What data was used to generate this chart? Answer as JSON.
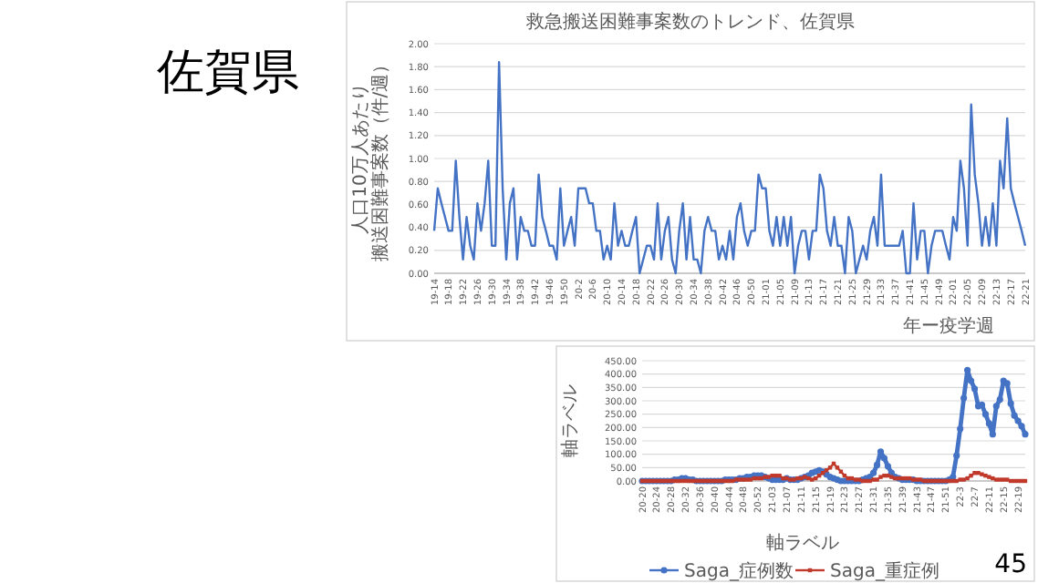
{
  "chart_data": [
    {
      "type": "other",
      "title": "佐賀県",
      "annotations": [
        "45"
      ]
    },
    {
      "type": "line",
      "title": "救急搬送困難事案数のトレンド、佐賀県",
      "xlabel": "年ー疫学週",
      "ylabel": "人口10万人あたり搬送困難事案数（件/週）",
      "grid": "y",
      "marker": "none",
      "line_style": "solid",
      "categories": [
        "19-14",
        null,
        null,
        null,
        "19-18",
        null,
        null,
        null,
        "19-22",
        null,
        null,
        null,
        "19-26",
        null,
        null,
        null,
        "19-30",
        null,
        null,
        null,
        "19-34",
        null,
        null,
        null,
        "19-38",
        null,
        null,
        null,
        "19-42",
        null,
        null,
        null,
        "19-46",
        null,
        null,
        null,
        "19-50",
        null,
        null,
        null,
        "20-2",
        null,
        null,
        null,
        "20-6",
        null,
        null,
        null,
        "20-10",
        null,
        null,
        null,
        "20-14",
        null,
        null,
        null,
        "20-18",
        null,
        null,
        null,
        "20-22",
        null,
        null,
        null,
        "20-26",
        null,
        null,
        null,
        "20-30",
        null,
        null,
        null,
        "20-34",
        null,
        null,
        null,
        "20-38",
        null,
        null,
        null,
        "20-42",
        null,
        null,
        null,
        "20-46",
        null,
        null,
        null,
        "20-50",
        null,
        null,
        null,
        "21-01",
        null,
        null,
        null,
        "21-05",
        null,
        null,
        null,
        "21-09",
        null,
        null,
        null,
        "21-13",
        null,
        null,
        null,
        "21-17",
        null,
        null,
        null,
        "21-21",
        null,
        null,
        null,
        "21-25",
        null,
        null,
        null,
        "21-29",
        null,
        null,
        null,
        "21-33",
        null,
        null,
        null,
        "21-37",
        null,
        null,
        null,
        "21-41",
        null,
        null,
        null,
        "21-45",
        null,
        null,
        null,
        "21-49",
        null,
        null,
        null,
        "22-01",
        null,
        null,
        null,
        "22-05",
        null,
        null,
        null,
        "22-09",
        null,
        null,
        null,
        "22-13",
        null,
        null,
        null,
        "22-17",
        null,
        null,
        null,
        "22-21"
      ],
      "ylim": [
        0,
        2
      ],
      "yticks": [
        {
          "value": 0,
          "label": "0.00"
        },
        {
          "value": 0.2,
          "label": "0.20"
        },
        {
          "value": 0.4,
          "label": "0.40"
        },
        {
          "value": 0.6,
          "label": "0.60"
        },
        {
          "value": 0.8,
          "label": "0.80"
        },
        {
          "value": 1,
          "label": "1.00"
        },
        {
          "value": 1.2,
          "label": "1.20"
        },
        {
          "value": 1.4,
          "label": "1.40"
        },
        {
          "value": 1.6,
          "label": "1.60"
        },
        {
          "value": 1.8,
          "label": "1.80"
        },
        {
          "value": 2,
          "label": "2.00"
        }
      ],
      "series": [
        {
          "color": "#4472c4",
          "values": [
            0.37,
            0.74,
            0.61,
            0.49,
            0.37,
            0.37,
            0.98,
            0.49,
            0.12,
            0.49,
            0.24,
            0.12,
            0.61,
            0.37,
            0.61,
            0.98,
            0.24,
            0.24,
            1.84,
            0.74,
            0.12,
            0.61,
            0.74,
            0.12,
            0.49,
            0.37,
            0.37,
            0.24,
            0.24,
            0.86,
            0.49,
            0.37,
            0.24,
            0.24,
            0.12,
            0.74,
            0.24,
            0.37,
            0.49,
            0.24,
            0.74,
            0.74,
            0.74,
            0.61,
            0.61,
            0.37,
            0.37,
            0.12,
            0.24,
            0.12,
            0.61,
            0.24,
            0.37,
            0.24,
            0.24,
            0.37,
            0.49,
            0,
            0.12,
            0.24,
            0.24,
            0.12,
            0.61,
            0.12,
            0.37,
            0.49,
            0.12,
            0,
            0.37,
            0.61,
            0.12,
            0.49,
            0.12,
            0.12,
            0,
            0.37,
            0.49,
            0.37,
            0.37,
            0.12,
            0.24,
            0.12,
            0.37,
            0.12,
            0.49,
            0.61,
            0.37,
            0.24,
            0.37,
            0.37,
            0.86,
            0.74,
            0.74,
            0.37,
            0.24,
            0.49,
            0.24,
            0.49,
            0.24,
            0.49,
            0,
            0.24,
            0.37,
            0.37,
            0.12,
            0.37,
            0.37,
            0.86,
            0.74,
            0.37,
            0.24,
            0.49,
            0.24,
            0.24,
            0,
            0.49,
            0.37,
            0,
            0.12,
            0.24,
            0.12,
            0.37,
            0.49,
            0.24,
            0.86,
            0.24,
            0.24,
            0.24,
            0.24,
            0.24,
            0.37,
            0,
            0,
            0.61,
            0.12,
            0.37,
            0.37,
            0,
            0.24,
            0.37,
            0.37,
            0.37,
            0.24,
            0.12,
            0.49,
            0.37,
            0.98,
            0.74,
            0.24,
            1.47,
            0.86,
            0.61,
            0.24,
            0.49,
            0.24,
            0.61,
            0.24,
            0.98,
            0.74,
            1.35,
            0.74,
            0.61,
            0.49,
            0.37,
            0.24
          ]
        }
      ]
    },
    {
      "type": "line",
      "xlabel": "軸ラベル",
      "ylabel": "軸ラベル",
      "grid": "y",
      "legend": "bottom",
      "line_style": "solid",
      "categories": [
        "20-20",
        null,
        null,
        null,
        "20-24",
        null,
        null,
        null,
        "20-28",
        null,
        null,
        null,
        "20-32",
        null,
        null,
        null,
        "20-36",
        null,
        null,
        null,
        "20-40",
        null,
        null,
        null,
        "20-44",
        null,
        null,
        null,
        "20-48",
        null,
        null,
        null,
        "20-52",
        null,
        null,
        null,
        "21-03",
        null,
        null,
        null,
        "21-07",
        null,
        null,
        null,
        "21-11",
        null,
        null,
        null,
        "21-15",
        null,
        null,
        null,
        "21-19",
        null,
        null,
        null,
        "21-23",
        null,
        null,
        null,
        "21-27",
        null,
        null,
        null,
        "21-31",
        null,
        null,
        null,
        "21-35",
        null,
        null,
        null,
        "21-39",
        null,
        null,
        null,
        "21-43",
        null,
        null,
        null,
        "21-47",
        null,
        null,
        null,
        "21-51",
        null,
        null,
        null,
        "22-3",
        null,
        null,
        null,
        "22-7",
        null,
        null,
        null,
        "22-11",
        null,
        null,
        null,
        "22-15",
        null,
        null,
        null,
        "22-19",
        null,
        null
      ],
      "ylim": [
        0,
        450
      ],
      "yticks": [
        {
          "value": 0,
          "label": "0.00"
        },
        {
          "value": 50,
          "label": "50.00"
        },
        {
          "value": 100,
          "label": "100.00"
        },
        {
          "value": 150,
          "label": "150.00"
        },
        {
          "value": 200,
          "label": "200.00"
        },
        {
          "value": 250,
          "label": "250.00"
        },
        {
          "value": 300,
          "label": "300.00"
        },
        {
          "value": 350,
          "label": "350.00"
        },
        {
          "value": 400,
          "label": "400.00"
        },
        {
          "value": 450,
          "label": "450.00"
        }
      ],
      "series": [
        {
          "name": "Saga_症例数",
          "color": "#4472c4",
          "marker": "circle",
          "values": [
            0,
            0,
            0,
            0,
            0,
            0,
            0,
            0,
            0,
            5,
            5,
            10,
            10,
            5,
            5,
            0,
            0,
            0,
            0,
            0,
            0,
            0,
            0,
            5,
            5,
            5,
            5,
            10,
            10,
            15,
            15,
            20,
            20,
            20,
            15,
            10,
            5,
            5,
            5,
            5,
            10,
            5,
            5,
            5,
            10,
            15,
            20,
            30,
            35,
            40,
            35,
            25,
            15,
            10,
            5,
            0,
            0,
            0,
            0,
            0,
            0,
            5,
            10,
            15,
            30,
            60,
            110,
            85,
            55,
            30,
            15,
            10,
            5,
            5,
            5,
            5,
            0,
            0,
            0,
            0,
            0,
            0,
            0,
            0,
            0,
            5,
            15,
            95,
            195,
            310,
            415,
            375,
            345,
            280,
            285,
            250,
            215,
            175,
            280,
            305,
            375,
            365,
            290,
            245,
            225,
            205,
            175
          ]
        },
        {
          "name": "Saga_重症例",
          "color": "#c0392b",
          "marker": "square",
          "values": [
            0,
            0,
            0,
            0,
            0,
            0,
            0,
            0,
            0,
            0,
            0,
            0,
            0,
            0,
            0,
            0,
            0,
            0,
            0,
            0,
            0,
            0,
            0,
            0,
            0,
            0,
            5,
            5,
            5,
            5,
            5,
            10,
            10,
            10,
            15,
            15,
            20,
            20,
            20,
            10,
            10,
            5,
            5,
            10,
            10,
            15,
            10,
            5,
            10,
            20,
            30,
            40,
            50,
            65,
            50,
            35,
            20,
            10,
            10,
            5,
            5,
            0,
            0,
            0,
            5,
            5,
            15,
            20,
            20,
            15,
            10,
            10,
            10,
            10,
            10,
            5,
            5,
            5,
            0,
            0,
            0,
            0,
            0,
            0,
            0,
            0,
            0,
            0,
            5,
            5,
            10,
            20,
            30,
            30,
            25,
            20,
            15,
            10,
            5,
            5,
            5,
            5,
            0,
            0,
            0,
            0,
            0
          ]
        }
      ]
    }
  ]
}
